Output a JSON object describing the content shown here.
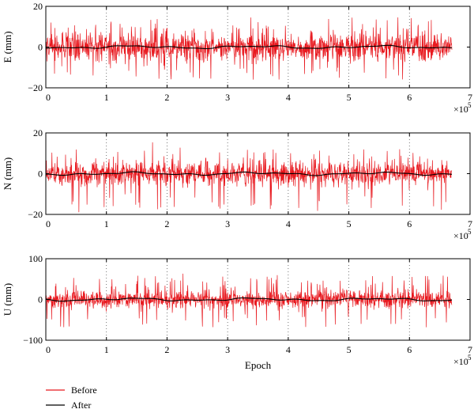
{
  "chart_data": [
    {
      "type": "line",
      "ylabel": "E (mm)",
      "xlabel": "",
      "xlim": [
        0,
        7
      ],
      "ylim": [
        -20,
        20
      ],
      "xticks": [
        "0",
        "1",
        "2",
        "3",
        "4",
        "5",
        "6",
        "7"
      ],
      "yticks": [
        "20",
        "0",
        "−20"
      ],
      "x_multiplier": "×10",
      "x_multiplier_exp": "5",
      "x_end": 6.7,
      "grid": "vertical dotted",
      "series": [
        {
          "name": "Before",
          "amplitude": 6,
          "spikes": 15,
          "neg_spikes": -16,
          "color": "#e8191f"
        },
        {
          "name": "After",
          "values_approx": 0,
          "color": "#000000"
        }
      ]
    },
    {
      "type": "line",
      "ylabel": "N (mm)",
      "xlabel": "",
      "xlim": [
        0,
        7
      ],
      "ylim": [
        -20,
        20
      ],
      "xticks": [
        "0",
        "1",
        "2",
        "3",
        "4",
        "5",
        "6",
        "7"
      ],
      "yticks": [
        "20",
        "0",
        "−20"
      ],
      "x_multiplier": "×10",
      "x_multiplier_exp": "5",
      "x_end": 6.7,
      "grid": "vertical dotted",
      "series": [
        {
          "name": "Before",
          "amplitude": 5,
          "spikes": 12,
          "neg_spikes": -19,
          "color": "#e8191f"
        },
        {
          "name": "After",
          "values_approx": 0,
          "color": "#000000"
        }
      ]
    },
    {
      "type": "line",
      "ylabel": "U (mm)",
      "xlabel": "Epoch",
      "xlim": [
        0,
        7
      ],
      "ylim": [
        -100,
        100
      ],
      "xticks": [
        "0",
        "1",
        "2",
        "3",
        "4",
        "5",
        "6",
        "7"
      ],
      "yticks": [
        "100",
        "0",
        "−100"
      ],
      "x_multiplier": "×10",
      "x_multiplier_exp": "5",
      "x_end": 6.7,
      "grid": "vertical dotted",
      "series": [
        {
          "name": "Before",
          "amplitude": 20,
          "spikes": 60,
          "neg_spikes": -70,
          "color": "#e8191f"
        },
        {
          "name": "After",
          "values_approx": 0,
          "color": "#000000"
        }
      ]
    }
  ],
  "legend": {
    "placement": "bottom-left",
    "items": [
      {
        "label": "Before",
        "color": "#e8191f"
      },
      {
        "label": "After",
        "color": "#000000"
      }
    ]
  }
}
